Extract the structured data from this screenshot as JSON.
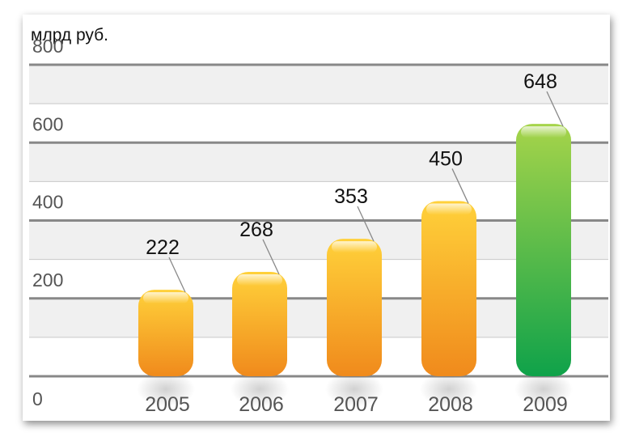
{
  "chart_data": {
    "type": "bar",
    "unit_label": "млрд руб.",
    "categories": [
      "2005",
      "2006",
      "2007",
      "2008",
      "2009"
    ],
    "values": [
      222,
      268,
      353,
      450,
      648
    ],
    "value_labels": [
      "222",
      "268",
      "353",
      "450",
      "648"
    ],
    "ylim": [
      0,
      800
    ],
    "yticks": [
      0,
      200,
      400,
      600,
      800
    ],
    "ytick_labels": [
      "0",
      "200",
      "400",
      "600",
      "800"
    ],
    "grid": true,
    "colors": {
      "bar_default_top": "#ffd13a",
      "bar_default_bottom": "#f08a1c",
      "bar_highlight_top": "#a6d44a",
      "bar_highlight_bottom": "#0fa24a",
      "gridline": "#888888",
      "band": "#f0f0f0"
    },
    "highlight_category": "2009"
  }
}
